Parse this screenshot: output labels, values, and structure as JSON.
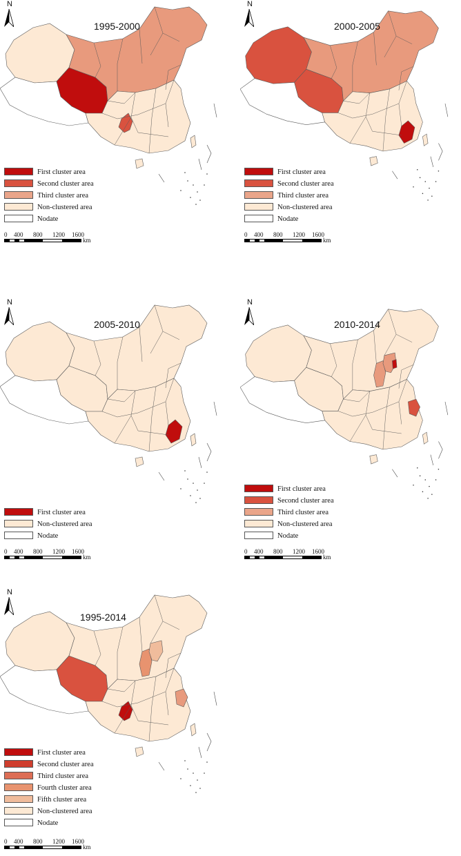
{
  "north_label": "N",
  "scale": {
    "ticks": [
      "0",
      "400",
      "800",
      "1200",
      "1600"
    ],
    "unit": "km"
  },
  "colors": {
    "first": "#c00d0d",
    "second": "#d9523f",
    "third": "#e89a7d",
    "fourth": "#e8936f",
    "fifth": "#f0bc9c",
    "non": "#fde9d4",
    "nodata": "#ffffff",
    "boundary": "#5a5a5a"
  },
  "panels": [
    {
      "title": "1995-2000",
      "legend": [
        {
          "label": "First cluster area",
          "color": "#c00d0d"
        },
        {
          "label": "Second cluster area",
          "color": "#d9523f"
        },
        {
          "label": "Third cluster area",
          "color": "#eaa58a"
        },
        {
          "label": "Non-clustered area",
          "color": "#fde9d4"
        },
        {
          "label": "Nodate",
          "color": "#ffffff"
        }
      ],
      "regions": {
        "qinghai": "first",
        "chongqing": "second",
        "north_belt": "third",
        "xinjiang": "non",
        "south": "non",
        "tibet": "nodata"
      }
    },
    {
      "title": "2000-2005",
      "legend": [
        {
          "label": "First cluster area",
          "color": "#c00d0d"
        },
        {
          "label": "Second cluster area",
          "color": "#d9523f"
        },
        {
          "label": "Third cluster area",
          "color": "#eaa58a"
        },
        {
          "label": "Non-clustered area",
          "color": "#fde9d4"
        },
        {
          "label": "Nodate",
          "color": "#ffffff"
        }
      ],
      "regions": {
        "fujian": "first",
        "xinjiang": "second",
        "qinghai": "second",
        "north_belt": "third",
        "south": "non",
        "tibet": "nodata"
      }
    },
    {
      "title": "2005-2010",
      "legend": [
        {
          "label": "First cluster area",
          "color": "#c00d0d"
        },
        {
          "label": "Non-clustered area",
          "color": "#fde9d4"
        },
        {
          "label": "Nodate",
          "color": "#ffffff"
        }
      ],
      "regions": {
        "fujian": "first",
        "xinjiang": "non",
        "qinghai": "non",
        "north_belt": "non",
        "south": "non",
        "tibet": "nodata"
      }
    },
    {
      "title": "2010-2014",
      "legend": [
        {
          "label": "First cluster area",
          "color": "#c00d0d"
        },
        {
          "label": "Second cluster area",
          "color": "#d9523f"
        },
        {
          "label": "Third cluster area",
          "color": "#eaa58a"
        },
        {
          "label": "Non-clustered area",
          "color": "#fde9d4"
        },
        {
          "label": "Nodate",
          "color": "#ffffff"
        }
      ],
      "regions": {
        "tianjin": "first",
        "zhejiang": "second",
        "shanxi": "third",
        "beijing_hebei": "third",
        "xinjiang": "non",
        "qinghai": "non",
        "north_belt": "non",
        "south": "non",
        "tibet": "nodata"
      }
    },
    {
      "title": "1995-2014",
      "legend": [
        {
          "label": "First cluster area",
          "color": "#c00d0d"
        },
        {
          "label": "Second cluster area",
          "color": "#cf3e2e"
        },
        {
          "label": "Third cluster area",
          "color": "#dd6e55"
        },
        {
          "label": "Fourth cluster area",
          "color": "#e8936f"
        },
        {
          "label": "Fifth cluster area",
          "color": "#f0bc9c"
        },
        {
          "label": "Non-clustered area",
          "color": "#fde9d4"
        },
        {
          "label": "Nodate",
          "color": "#ffffff"
        }
      ],
      "regions": {
        "chongqing": "first",
        "qinghai": "second",
        "zhejiang": "third",
        "shanxi": "fourth",
        "beijing_hebei": "fifth",
        "xinjiang": "non",
        "north_belt": "non",
        "south": "non",
        "tibet": "nodata"
      }
    }
  ]
}
